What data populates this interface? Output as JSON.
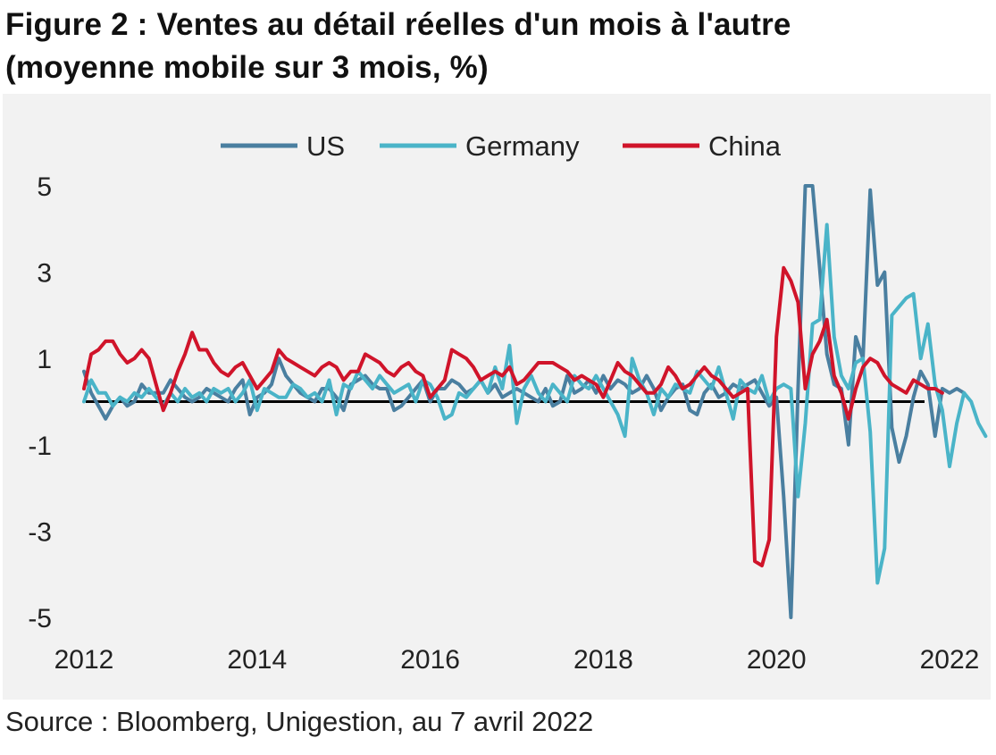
{
  "title_line1": "Figure 2 : Ventes au détail réelles d'un mois à l'autre",
  "title_line2": "(moyenne mobile sur 3 mois, %)",
  "source": "Source : Bloomberg, Unigestion, au 7 avril 2022",
  "chart_data": {
    "type": "line",
    "title": "Figure 2 : Ventes au détail réelles d'un mois à l'autre (moyenne mobile sur 3 mois, %)",
    "x_tick_labels": [
      "2012",
      "2014",
      "2016",
      "2018",
      "2020",
      "2022"
    ],
    "y_tick_labels": [
      "5",
      "3",
      "1",
      "-1",
      "-3",
      "-5"
    ],
    "xlim": [
      2012,
      2022
    ],
    "ylim": [
      -5,
      5
    ],
    "baseline": 0,
    "grid": false,
    "legend_position": "top-center",
    "x_start": 2012.0,
    "x_step_months": 1,
    "series": [
      {
        "name": "US",
        "color": "#4a7fa0",
        "values": [
          0.7,
          0.2,
          -0.1,
          -0.4,
          -0.1,
          0.1,
          -0.1,
          0.0,
          0.4,
          0.2,
          0.2,
          0.2,
          0.5,
          0.3,
          0.1,
          0.0,
          0.1,
          0.3,
          0.2,
          0.1,
          0.0,
          0.3,
          0.5,
          -0.3,
          0.1,
          0.2,
          0.4,
          1.0,
          0.6,
          0.4,
          0.2,
          0.1,
          0.0,
          0.3,
          0.3,
          0.1,
          -0.2,
          0.4,
          0.5,
          0.6,
          0.4,
          0.3,
          0.3,
          -0.2,
          -0.1,
          0.1,
          0.3,
          0.5,
          0.0,
          0.3,
          0.3,
          0.5,
          0.4,
          0.2,
          0.3,
          0.5,
          0.2,
          0.4,
          0.1,
          0.2,
          0.3,
          0.2,
          0.1,
          0.0,
          0.3,
          -0.1,
          0.0,
          0.6,
          0.2,
          0.3,
          0.5,
          0.2,
          0.6,
          0.3,
          0.5,
          0.4,
          0.2,
          0.3,
          0.6,
          0.3,
          -0.2,
          0.1,
          0.3,
          0.4,
          -0.2,
          -0.3,
          0.2,
          0.4,
          0.1,
          0.2,
          0.4,
          0.3,
          0.4,
          0.5,
          0.2,
          -0.1,
          0.1,
          -2.2,
          -5.0,
          0.3,
          5.2,
          5.2,
          3.1,
          1.1,
          0.4,
          0.3,
          -1.0,
          1.5,
          1.0,
          4.9,
          2.7,
          3.0,
          -0.6,
          -1.4,
          -0.8,
          0.1,
          0.7,
          0.4,
          -0.8,
          0.3,
          0.2,
          0.3,
          0.2
        ]
      },
      {
        "name": "Germany",
        "color": "#4ab4c8",
        "values": [
          0.0,
          0.5,
          0.2,
          0.2,
          -0.1,
          0.1,
          0.0,
          0.2,
          0.1,
          0.3,
          0.1,
          -0.1,
          0.2,
          0.0,
          0.3,
          0.1,
          0.2,
          0.0,
          0.3,
          0.2,
          0.3,
          0.0,
          0.2,
          0.5,
          -0.2,
          0.3,
          0.2,
          0.1,
          0.1,
          0.4,
          0.3,
          0.1,
          0.2,
          0.0,
          0.5,
          -0.3,
          0.4,
          0.3,
          0.7,
          0.5,
          0.3,
          0.6,
          0.4,
          0.2,
          0.3,
          0.4,
          0.0,
          0.5,
          0.4,
          0.1,
          -0.4,
          -0.3,
          0.2,
          0.1,
          0.3,
          0.5,
          0.2,
          0.8,
          0.3,
          1.3,
          -0.5,
          0.3,
          0.6,
          0.2,
          0.0,
          0.4,
          0.2,
          0.0,
          0.6,
          0.4,
          0.3,
          0.6,
          0.3,
          0.0,
          -0.3,
          -0.8,
          1.0,
          0.5,
          0.2,
          -0.3,
          0.3,
          0.1,
          0.4,
          0.3,
          0.2,
          0.7,
          0.5,
          0.3,
          0.8,
          0.2,
          -0.4,
          0.5,
          0.3,
          0.2,
          0.6,
          0.0,
          0.3,
          0.4,
          0.3,
          -2.2,
          -0.5,
          1.8,
          1.9,
          4.1,
          1.5,
          0.6,
          0.3,
          0.9,
          1.0,
          -0.7,
          -4.2,
          -3.4,
          2.0,
          2.2,
          2.4,
          2.5,
          1.0,
          1.8,
          0.4,
          -0.2,
          -1.5,
          -0.5,
          0.2,
          0.0,
          -0.5,
          -0.8
        ]
      },
      {
        "name": "China",
        "color": "#d0142a",
        "values": [
          0.3,
          1.1,
          1.2,
          1.4,
          1.4,
          1.1,
          0.9,
          1.0,
          1.2,
          1.0,
          0.4,
          -0.2,
          0.2,
          0.7,
          1.1,
          1.6,
          1.2,
          1.2,
          0.9,
          0.7,
          0.6,
          0.8,
          0.9,
          0.6,
          0.3,
          0.5,
          0.7,
          1.2,
          1.0,
          0.9,
          0.8,
          0.7,
          0.6,
          0.8,
          0.9,
          0.8,
          0.5,
          0.7,
          0.7,
          1.1,
          1.0,
          0.9,
          0.7,
          0.6,
          0.8,
          0.9,
          0.7,
          0.6,
          0.1,
          0.3,
          0.5,
          1.2,
          1.1,
          1.0,
          0.8,
          0.5,
          0.6,
          0.7,
          0.6,
          0.8,
          0.4,
          0.5,
          0.7,
          0.9,
          0.9,
          0.9,
          0.8,
          0.7,
          0.5,
          0.6,
          0.5,
          0.4,
          0.1,
          0.5,
          0.9,
          0.7,
          0.6,
          0.4,
          0.2,
          0.2,
          0.4,
          0.8,
          0.6,
          0.3,
          0.4,
          0.6,
          0.8,
          0.6,
          0.5,
          0.3,
          0.1,
          0.2,
          0.3,
          -3.7,
          -3.8,
          -3.2,
          1.5,
          3.1,
          2.8,
          2.3,
          0.3,
          1.1,
          1.4,
          1.9,
          0.6,
          0.2,
          -0.4,
          0.3,
          0.8,
          1.0,
          0.9,
          0.6,
          0.4,
          0.3,
          0.2,
          0.5,
          0.4,
          0.3,
          0.3,
          0.2
        ]
      }
    ]
  }
}
